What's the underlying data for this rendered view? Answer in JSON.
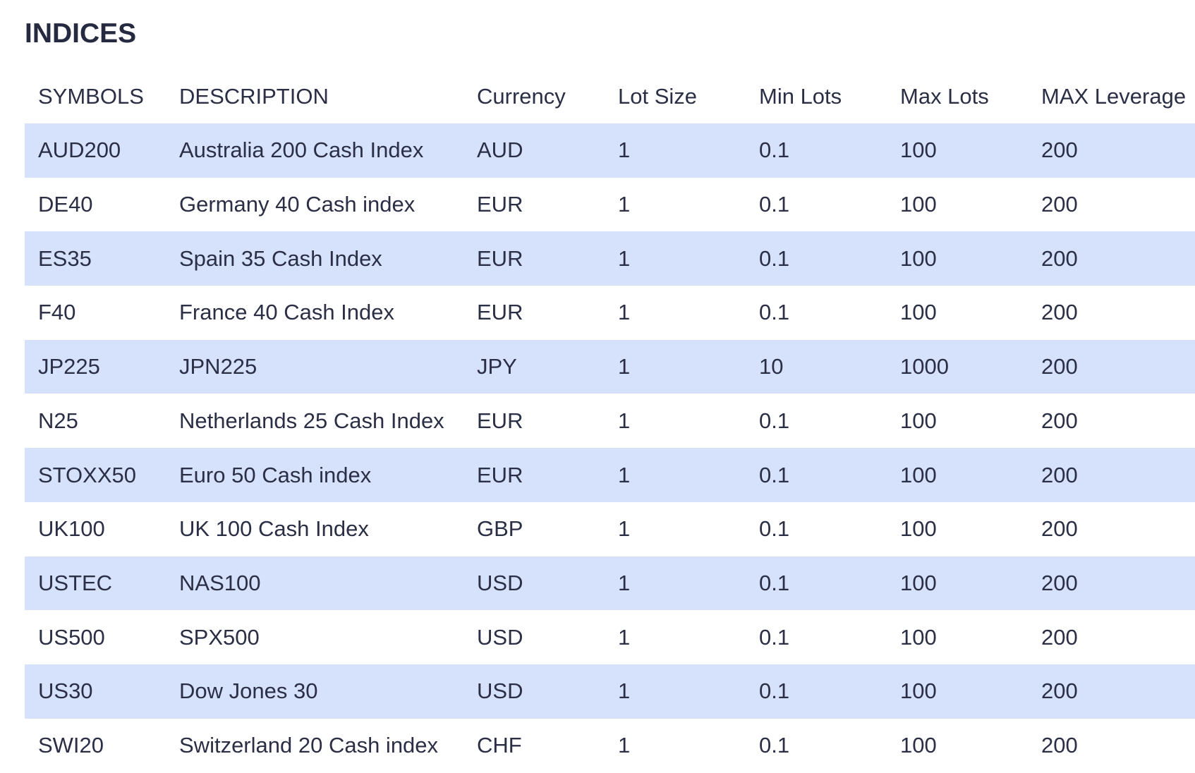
{
  "header": {
    "title": "INDICES"
  },
  "table": {
    "columns": [
      "SYMBOLS",
      "DESCRIPTION",
      "Currency",
      "Lot Size",
      "Min Lots",
      "Max Lots",
      "MAX Leverage"
    ],
    "rows": [
      [
        "AUD200",
        "Australia 200 Cash Index",
        "AUD",
        1,
        0.1,
        100,
        200
      ],
      [
        "DE40",
        "Germany 40 Cash index",
        "EUR",
        1,
        0.1,
        100,
        200
      ],
      [
        "ES35",
        "Spain 35 Cash Index",
        "EUR",
        1,
        0.1,
        100,
        200
      ],
      [
        "F40",
        "France 40 Cash Index",
        "EUR",
        1,
        0.1,
        100,
        200
      ],
      [
        "JP225",
        "JPN225",
        "JPY",
        1,
        10,
        1000,
        200
      ],
      [
        "N25",
        "Netherlands 25 Cash Index",
        "EUR",
        1,
        0.1,
        100,
        200
      ],
      [
        "STOXX50",
        "Euro 50 Cash index",
        "EUR",
        1,
        0.1,
        100,
        200
      ],
      [
        "UK100",
        "UK 100 Cash Index",
        "GBP",
        1,
        0.1,
        100,
        200
      ],
      [
        "USTEC",
        "NAS100",
        "USD",
        1,
        0.1,
        100,
        200
      ],
      [
        "US500",
        "SPX500",
        "USD",
        1,
        0.1,
        100,
        200
      ],
      [
        "US30",
        "Dow Jones 30",
        "USD",
        1,
        0.1,
        100,
        200
      ],
      [
        "SWI20",
        "Switzerland 20 Cash index",
        "CHF",
        1,
        0.1,
        100,
        200
      ]
    ]
  }
}
